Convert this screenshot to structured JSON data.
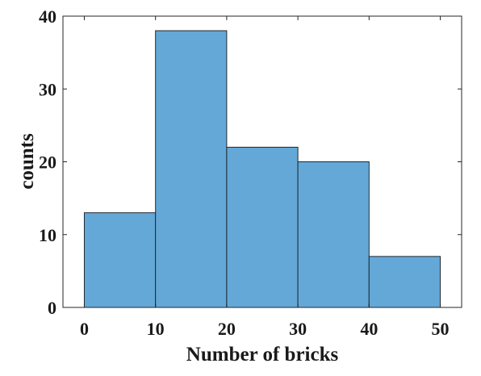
{
  "chart_data": {
    "type": "bar",
    "subtype": "histogram",
    "bins": [
      [
        0,
        10
      ],
      [
        10,
        20
      ],
      [
        20,
        30
      ],
      [
        30,
        40
      ],
      [
        40,
        50
      ]
    ],
    "values": [
      13,
      38,
      22,
      20,
      7
    ],
    "xlabel": "Number of bricks",
    "ylabel": "counts",
    "xlim": [
      -3,
      53
    ],
    "ylim": [
      0,
      40
    ],
    "xticks": [
      0,
      10,
      20,
      30,
      40,
      50
    ],
    "yticks": [
      0,
      10,
      20,
      30,
      40
    ],
    "xtick_labels": [
      "0",
      "10",
      "20",
      "30",
      "40",
      "50"
    ],
    "ytick_labels": [
      "0",
      "10",
      "20",
      "30",
      "40"
    ],
    "grid": false,
    "bar_color": "#64a8d8",
    "edge_color": "#1f2a33"
  }
}
